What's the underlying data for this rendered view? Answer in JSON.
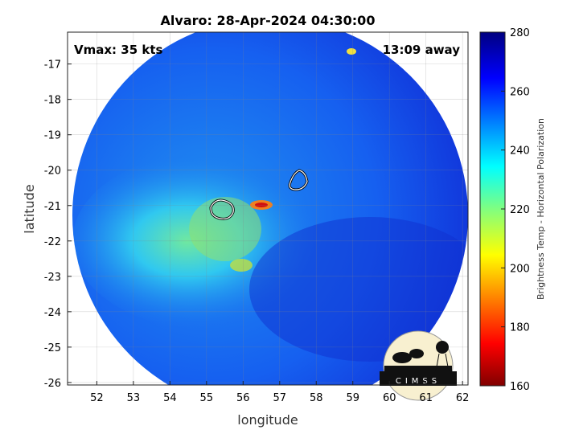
{
  "title": "Alvaro: 28-Apr-2024 04:30:00",
  "vmax_label": "Vmax: 35 kts",
  "time_away_label": "13:09 away",
  "xlabel": "longitude",
  "ylabel": "latitude",
  "x_ticks": [
    "52",
    "53",
    "54",
    "55",
    "56",
    "57",
    "58",
    "59",
    "60",
    "61",
    "62"
  ],
  "y_ticks": [
    "-17",
    "-18",
    "-19",
    "-20",
    "-21",
    "-22",
    "-23",
    "-24",
    "-25",
    "-26"
  ],
  "xlim": [
    51.2,
    62.15
  ],
  "ylim": [
    -26.07,
    -16.1
  ],
  "grid": true,
  "colorbar": {
    "label": "Brightness Temp - Horizontal Polarization",
    "ticks": [
      "160",
      "180",
      "200",
      "220",
      "240",
      "260",
      "280"
    ],
    "range": [
      160,
      280
    ],
    "colormap": "jet"
  },
  "logo_text": "CIMSS",
  "colors": {
    "deep_blue": "#1030e0",
    "cyan": "#20c0f0",
    "green": "#90e060",
    "red": "#e02010"
  }
}
